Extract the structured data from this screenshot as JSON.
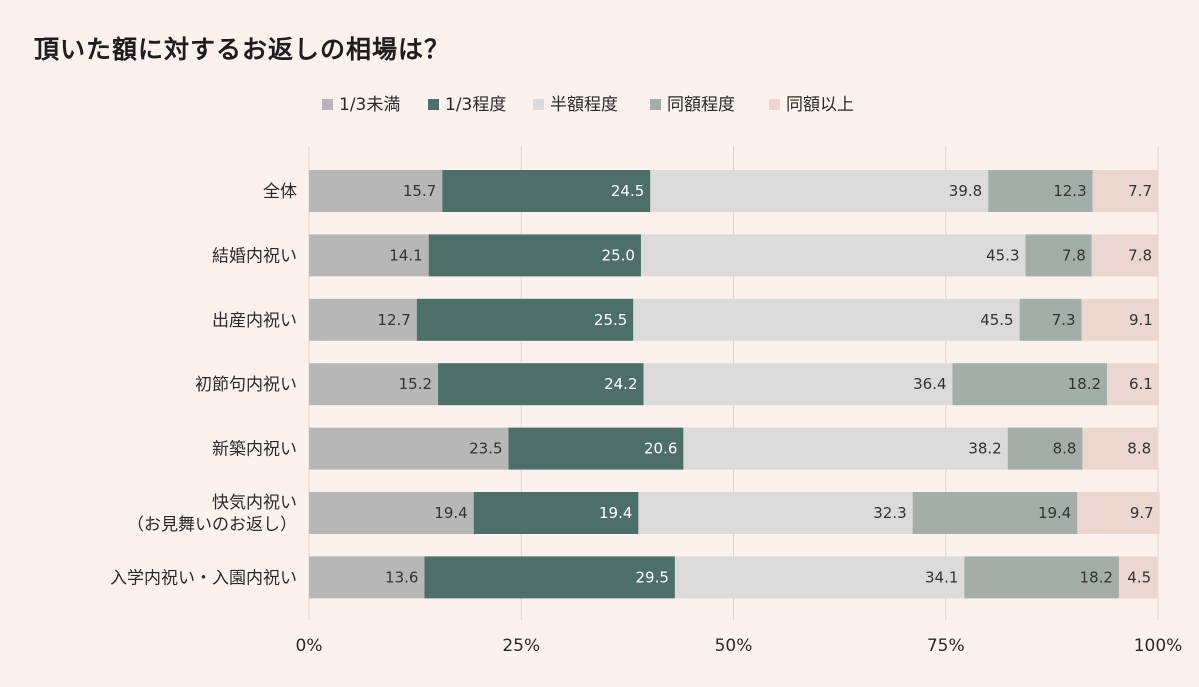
{
  "title": "頂いた額に対するお返しの相場は？",
  "chart_data": {
    "type": "bar",
    "orientation": "horizontal",
    "stacked": true,
    "percent_stacked": true,
    "categories": [
      [
        "全体"
      ],
      [
        "結婚内祝い"
      ],
      [
        "出産内祝い"
      ],
      [
        "初節句内祝い"
      ],
      [
        "新築内祝い"
      ],
      [
        "快気内祝い",
        "（お見舞いのお返し）"
      ],
      [
        "入学内祝い・入園内祝い"
      ]
    ],
    "series": [
      {
        "name": "1/3未満",
        "color": "#b7b7b7",
        "label_color": "#333333",
        "values": [
          15.7,
          14.1,
          12.7,
          15.2,
          23.5,
          19.4,
          13.6
        ]
      },
      {
        "name": "1/3程度",
        "color": "#4d6f6a",
        "label_color": "#ffffff",
        "values": [
          24.5,
          25.0,
          25.5,
          24.2,
          20.6,
          19.4,
          29.5
        ]
      },
      {
        "name": "半額程度",
        "color": "#dbdbdb",
        "label_color": "#333333",
        "values": [
          39.8,
          45.3,
          45.5,
          36.4,
          38.2,
          32.3,
          34.1
        ]
      },
      {
        "name": "同額程度",
        "color": "#a4aea8",
        "label_color": "#333333",
        "values": [
          12.3,
          7.8,
          7.3,
          18.2,
          8.8,
          19.4,
          18.2
        ]
      },
      {
        "name": "同額以上",
        "color": "#ebd7cf",
        "label_color": "#333333",
        "values": [
          7.7,
          7.8,
          9.1,
          6.1,
          8.8,
          9.7,
          4.5
        ]
      }
    ],
    "x_ticks": [
      "0%",
      "25%",
      "50%",
      "75%",
      "100%"
    ],
    "xlim": [
      0,
      100
    ],
    "grid": true,
    "legend_position": "top-center"
  }
}
